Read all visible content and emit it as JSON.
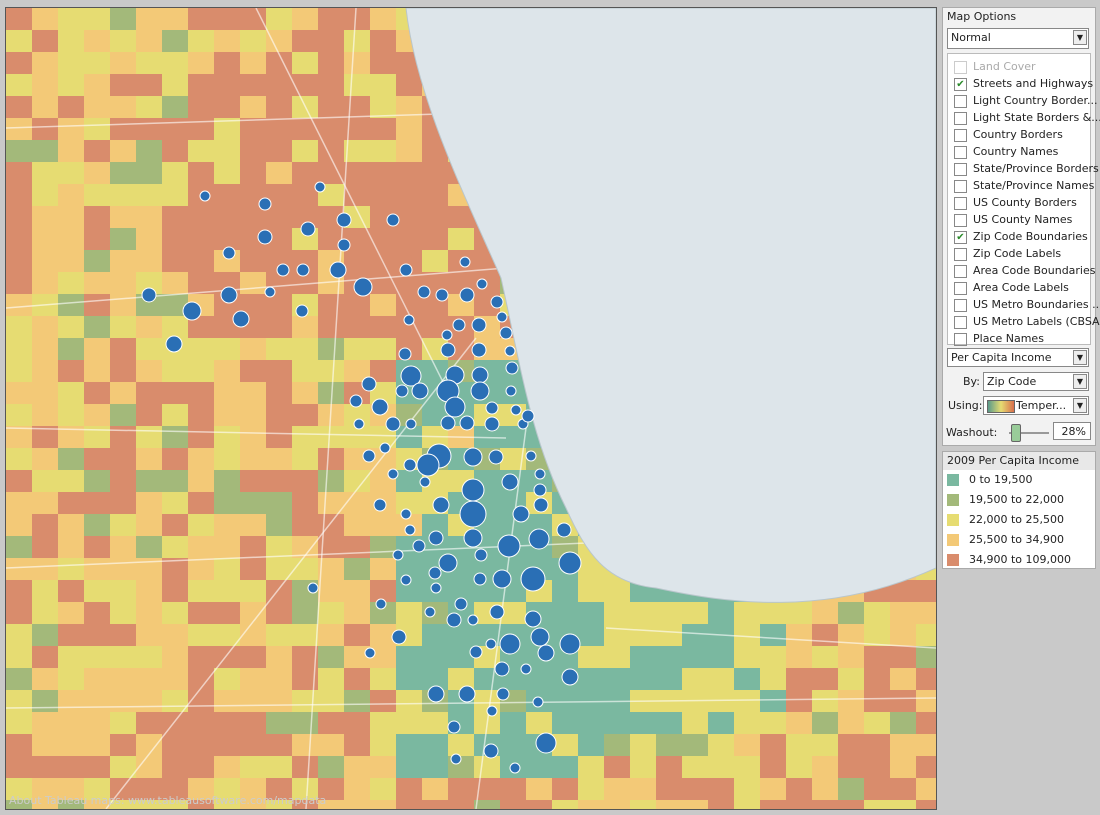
{
  "map": {
    "credit": "About Tableau maps: www.tableausoftware.com/mapdata"
  },
  "map_options": {
    "title": "Map Options",
    "style": "Normal",
    "layers": [
      {
        "label": "Land Cover",
        "checked": false,
        "disabled": true
      },
      {
        "label": "Streets and Highways",
        "checked": true
      },
      {
        "label": "Light Country Border...",
        "checked": false
      },
      {
        "label": "Light State Borders &...",
        "checked": false
      },
      {
        "label": "Country Borders",
        "checked": false
      },
      {
        "label": "Country Names",
        "checked": false
      },
      {
        "label": "State/Province Borders",
        "checked": false
      },
      {
        "label": "State/Province Names",
        "checked": false
      },
      {
        "label": "US County Borders",
        "checked": false
      },
      {
        "label": "US County Names",
        "checked": false
      },
      {
        "label": "Zip Code Boundaries",
        "checked": true
      },
      {
        "label": "Zip Code Labels",
        "checked": false
      },
      {
        "label": "Area Code Boundaries",
        "checked": false
      },
      {
        "label": "Area Code Labels",
        "checked": false
      },
      {
        "label": "US Metro Boundaries ...",
        "checked": false
      },
      {
        "label": "US Metro Labels (CBSA)",
        "checked": false
      },
      {
        "label": "Place Names",
        "checked": false
      }
    ],
    "data_layer": "Per Capita Income",
    "by_label": "By:",
    "by": "Zip Code",
    "using_label": "Using:",
    "using": "Temper...",
    "washout_label": "Washout:",
    "washout": "28%"
  },
  "legend": {
    "title": "2009 Per Capita Income",
    "items": [
      {
        "label": "0 to 19,500",
        "color": "#7ab8a0"
      },
      {
        "label": "19,500 to 22,000",
        "color": "#a3b97a"
      },
      {
        "label": "22,000 to 25,500",
        "color": "#e6dc72"
      },
      {
        "label": "25,500 to 34,900",
        "color": "#f3c977"
      },
      {
        "label": "34,900 to 109,000",
        "color": "#d98c6c"
      }
    ]
  }
}
